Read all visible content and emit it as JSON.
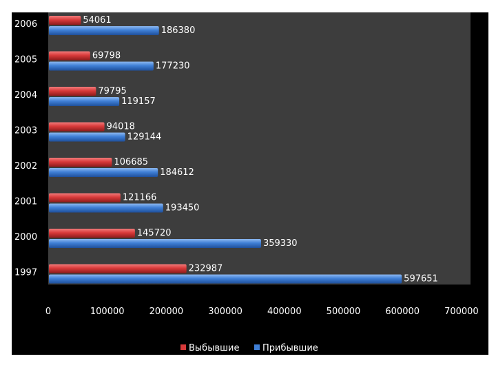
{
  "chart_data": {
    "type": "bar",
    "orientation": "horizontal",
    "categories": [
      "1997",
      "2000",
      "2001",
      "2002",
      "2003",
      "2004",
      "2005",
      "2006"
    ],
    "series": [
      {
        "name": "Выбывшие",
        "color": "#d83a3a",
        "values": [
          232987,
          145720,
          121166,
          106685,
          94018,
          79795,
          69798,
          54061
        ]
      },
      {
        "name": "Прибывшие",
        "color": "#3f7fd6",
        "values": [
          597651,
          359330,
          193450,
          184612,
          129144,
          119157,
          177230,
          186380
        ]
      }
    ],
    "x_ticks": [
      "0",
      "100000",
      "200000",
      "300000",
      "400000",
      "500000",
      "600000",
      "700000"
    ],
    "xlim": [
      0,
      700000
    ],
    "plot_background": "#3d3d3d",
    "frame_background": "#000000",
    "legend_position": "bottom",
    "grid": false
  }
}
